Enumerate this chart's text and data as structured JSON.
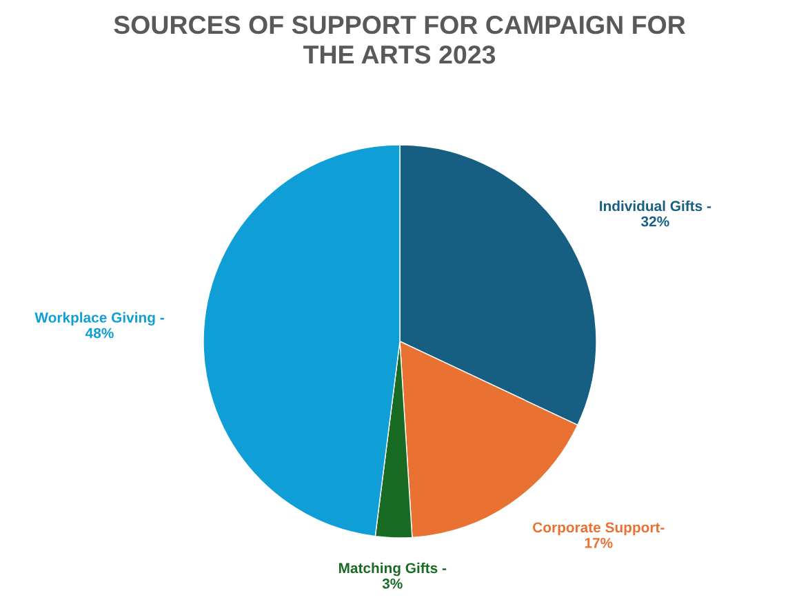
{
  "chart_data": {
    "type": "pie",
    "title": "SOURCES OF SUPPORT FOR CAMPAIGN FOR\nTHE ARTS 2023",
    "categories": [
      "Individual Gifts -",
      "Corporate Support-",
      "Matching Gifts -",
      "Workplace Giving -"
    ],
    "values": [
      32,
      17,
      3,
      48
    ],
    "colors": [
      "#175f82",
      "#e97132",
      "#196b24",
      "#0f9ed5"
    ],
    "value_labels": [
      "32%",
      "17%",
      "3%",
      "48%"
    ],
    "legend": false
  }
}
